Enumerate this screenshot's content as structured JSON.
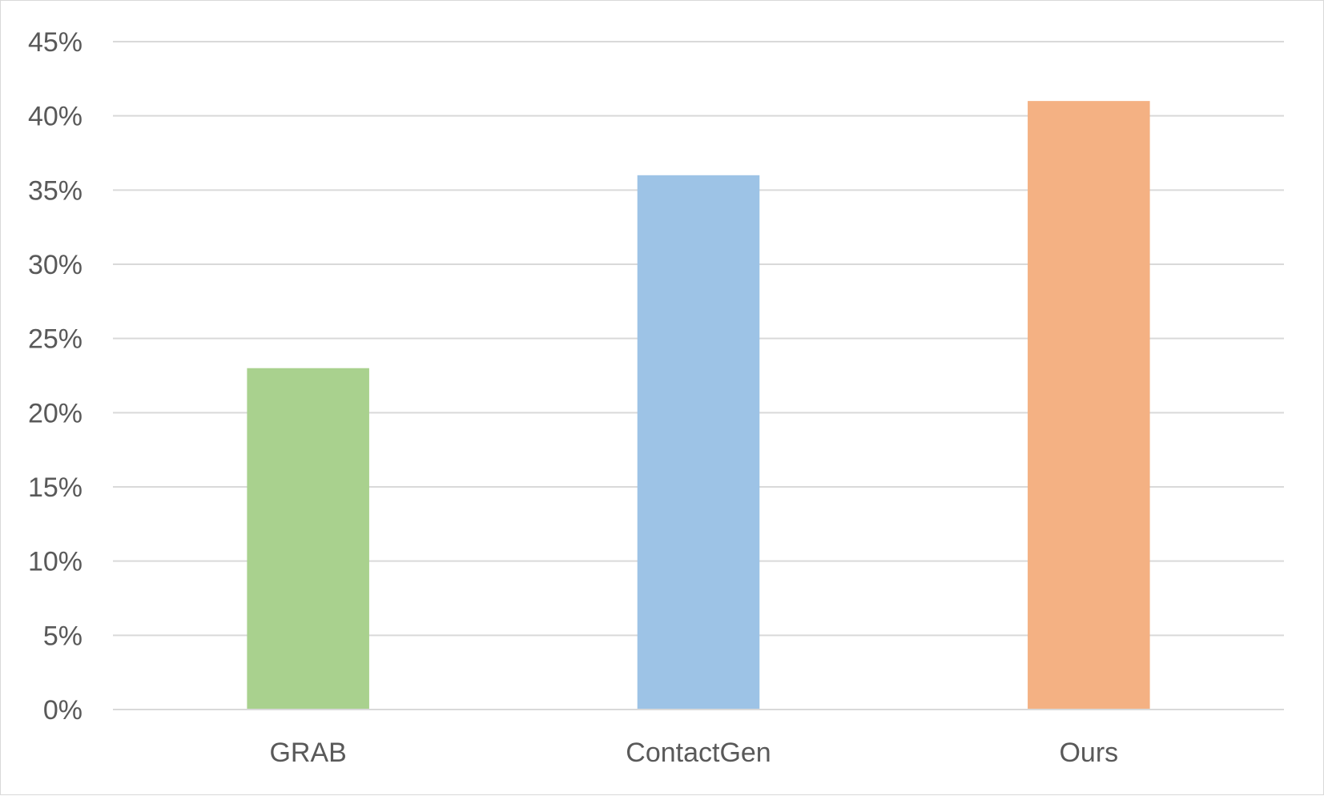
{
  "chart_data": {
    "type": "bar",
    "title": "",
    "xlabel": "",
    "ylabel": "",
    "categories": [
      "GRAB",
      "ContactGen",
      "Ours"
    ],
    "values": [
      0.23,
      0.36,
      0.41
    ],
    "colors": [
      "#a9d18e",
      "#9dc3e6",
      "#f4b183"
    ],
    "ylim": [
      0,
      0.45
    ],
    "y_ticks": [
      {
        "value": 0.0,
        "label": "0%"
      },
      {
        "value": 0.05,
        "label": "5%"
      },
      {
        "value": 0.1,
        "label": "10%"
      },
      {
        "value": 0.15,
        "label": "15%"
      },
      {
        "value": 0.2,
        "label": "20%"
      },
      {
        "value": 0.25,
        "label": "25%"
      },
      {
        "value": 0.3,
        "label": "30%"
      },
      {
        "value": 0.35,
        "label": "35%"
      },
      {
        "value": 0.4,
        "label": "40%"
      },
      {
        "value": 0.45,
        "label": "45%"
      }
    ],
    "grid": true,
    "legend": "none"
  }
}
